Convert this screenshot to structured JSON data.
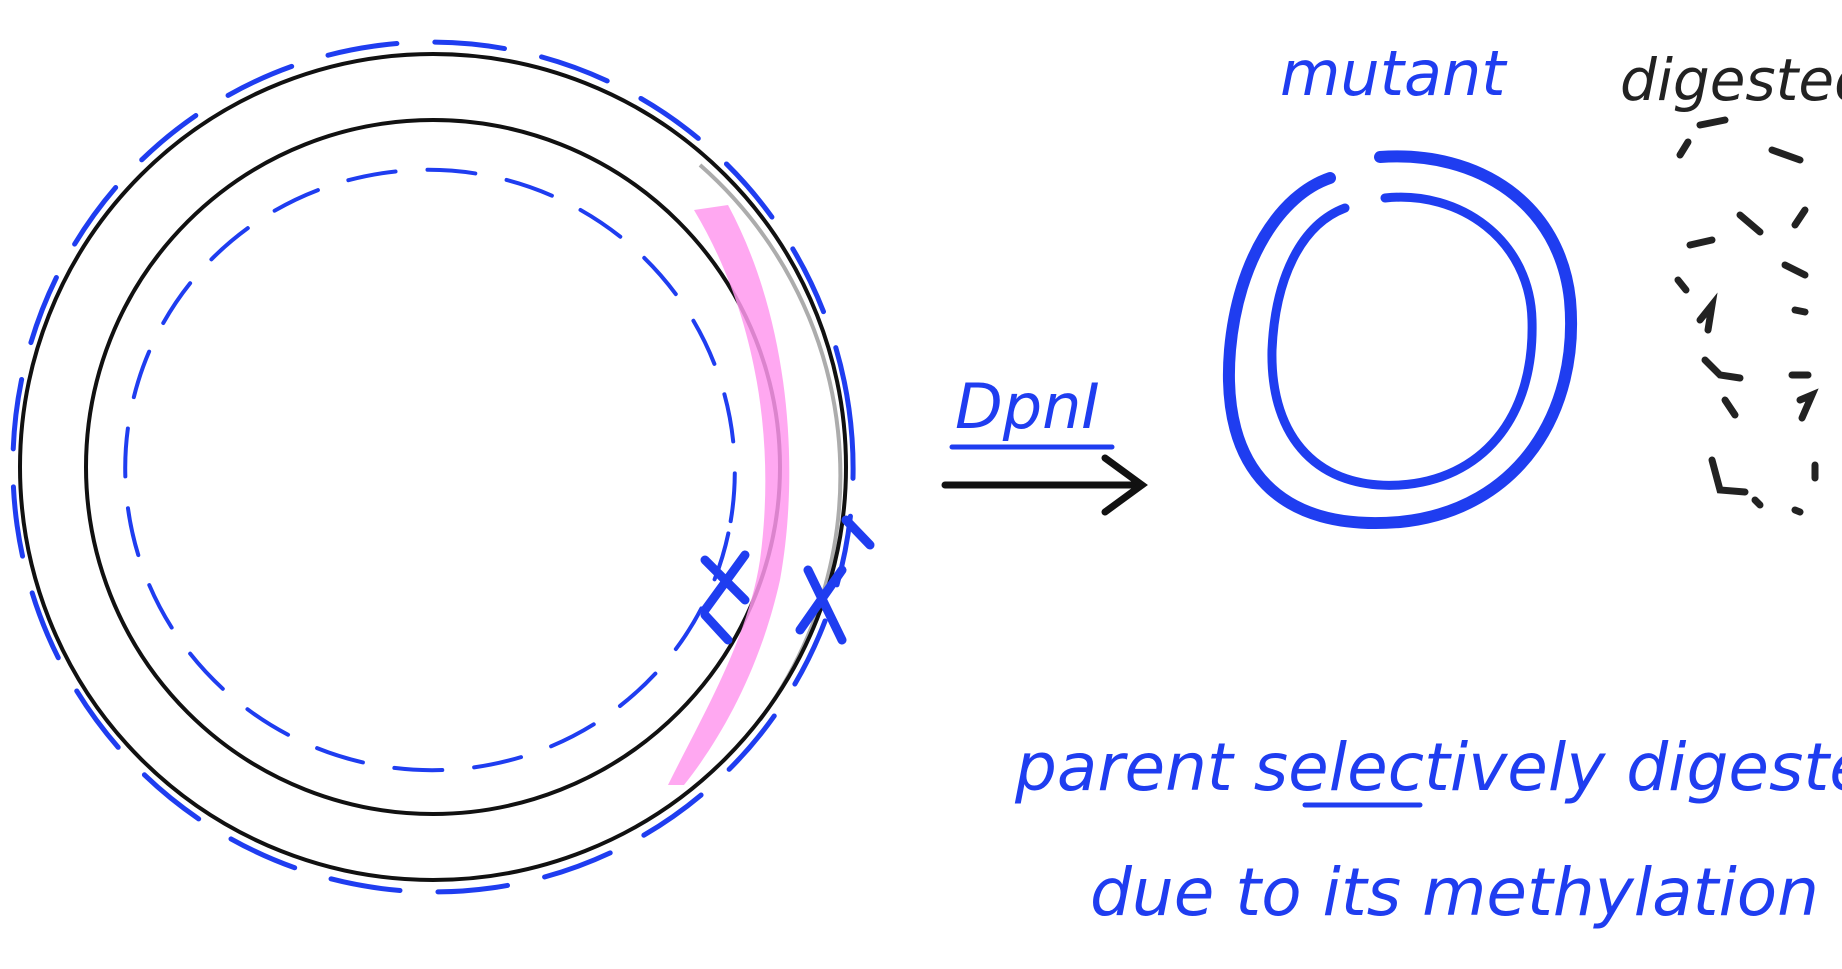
{
  "labels": {
    "enzyme": "DpnI",
    "mutant": "mutant",
    "digested": "digested",
    "caption_line1": "parent selectively digested",
    "caption_line2": "due to its methylation"
  },
  "colors": {
    "blue_ink": "#1f3df0",
    "black_ink": "#111111",
    "mutation_highlight": "#ff99ee"
  },
  "icons": {
    "arrow": "right-arrow-icon",
    "mutation_mark": "x-mark-icon"
  }
}
